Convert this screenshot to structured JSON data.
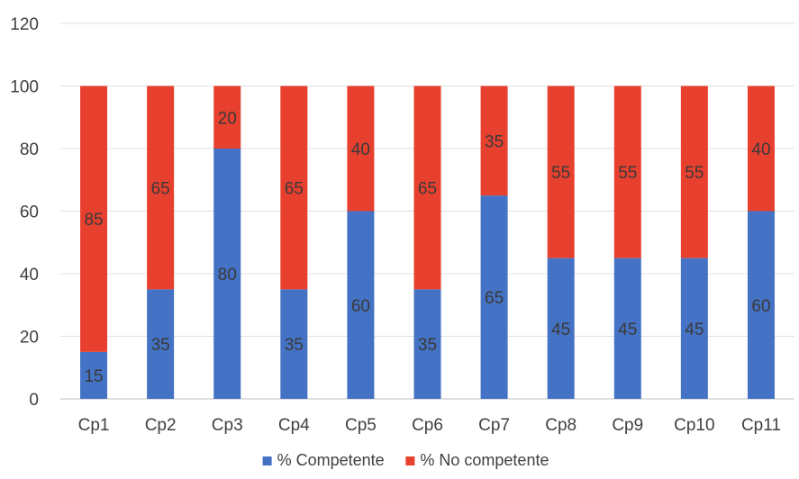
{
  "chart_data": {
    "type": "bar",
    "stacked": true,
    "categories": [
      "Cp1",
      "Cp2",
      "Cp3",
      "Cp4",
      "Cp5",
      "Cp6",
      "Cp7",
      "Cp8",
      "Cp9",
      "Cp10",
      "Cp11"
    ],
    "series": [
      {
        "name": "% Competente",
        "color": "#4472c4",
        "values": [
          15,
          35,
          80,
          35,
          60,
          35,
          65,
          45,
          45,
          45,
          60
        ]
      },
      {
        "name": "% No competente",
        "color": "#e8402f",
        "values": [
          85,
          65,
          20,
          65,
          40,
          65,
          35,
          55,
          55,
          55,
          40
        ]
      }
    ],
    "ylim": [
      0,
      120
    ],
    "yticks": [
      0,
      20,
      40,
      60,
      80,
      100,
      120
    ],
    "grid": true,
    "legend": "bottom",
    "data_labels": true
  }
}
